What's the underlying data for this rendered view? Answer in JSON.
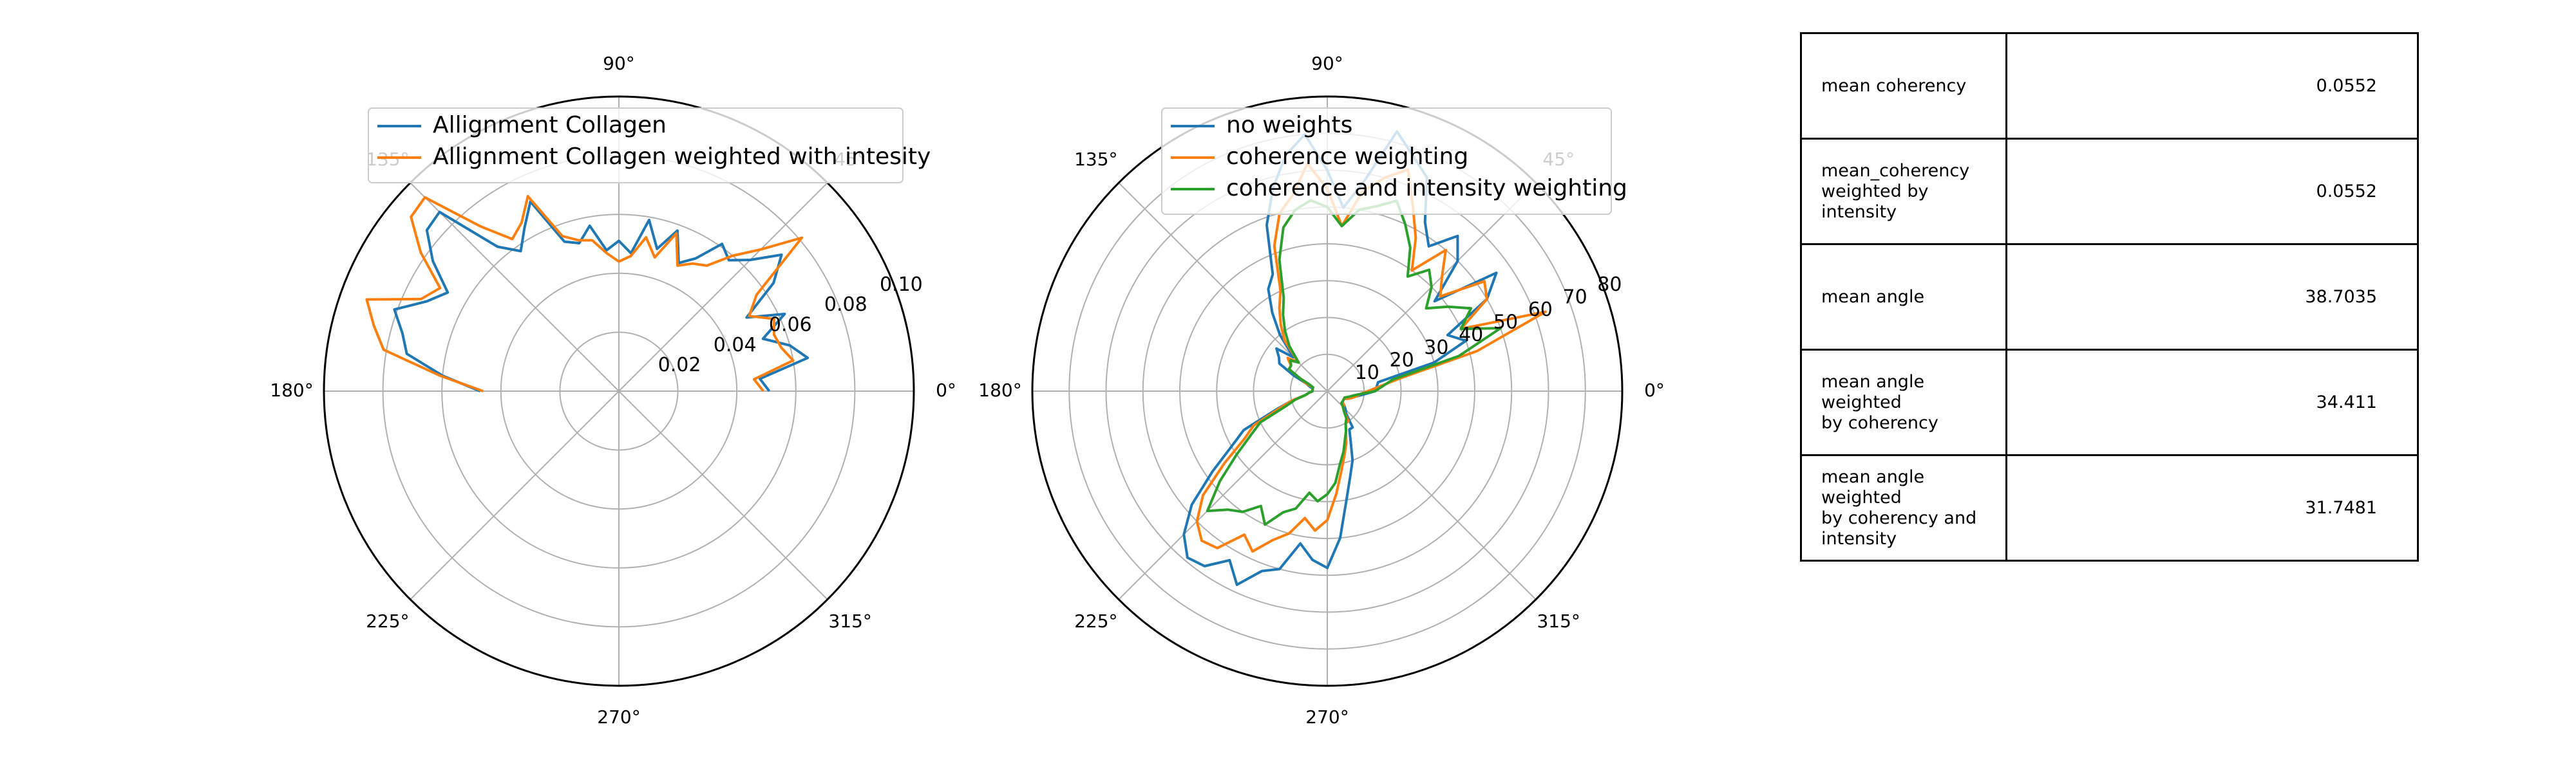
{
  "chart_data": [
    {
      "type": "polar-line",
      "angle_ticks": [
        "0°",
        "45°",
        "90°",
        "135°",
        "180°",
        "225°",
        "270°",
        "315°"
      ],
      "r_ticks": [
        "0.02",
        "0.04",
        "0.06",
        "0.08",
        "0.10"
      ],
      "r_tick_values": [
        0.02,
        0.04,
        0.06,
        0.08,
        0.1
      ],
      "rmax": 0.1,
      "legend_position": "top",
      "grid": true,
      "theta_deg": [
        0,
        5,
        10,
        15,
        20,
        25,
        30,
        35,
        40,
        45,
        50,
        55,
        60,
        65,
        70,
        75,
        80,
        85,
        90,
        95,
        100,
        105,
        110,
        115,
        120,
        125,
        130,
        135,
        140,
        145,
        150,
        155,
        160,
        165,
        170,
        175,
        180
      ],
      "series": [
        {
          "name": "Allignment Collagen",
          "color": "#1f77b4",
          "r": [
            0.051,
            0.048,
            0.065,
            0.06,
            0.052,
            0.062,
            0.05,
            0.064,
            0.072,
            0.063,
            0.058,
            0.061,
            0.052,
            0.048,
            0.058,
            0.05,
            0.059,
            0.047,
            0.051,
            0.048,
            0.057,
            0.052,
            0.054,
            0.071,
            0.064,
            0.058,
            0.064,
            0.086,
            0.085,
            0.077,
            0.067,
            0.072,
            0.081,
            0.076,
            0.073,
            0.06,
            0.047
          ]
        },
        {
          "name": "Allignment Collagen weighted with intesity",
          "color": "#ff7f0e",
          "r": [
            0.049,
            0.046,
            0.06,
            0.057,
            0.056,
            0.058,
            0.051,
            0.057,
            0.081,
            0.068,
            0.06,
            0.052,
            0.05,
            0.047,
            0.057,
            0.047,
            0.053,
            0.046,
            0.044,
            0.047,
            0.052,
            0.053,
            0.056,
            0.073,
            0.066,
            0.063,
            0.073,
            0.093,
            0.092,
            0.082,
            0.07,
            0.074,
            0.091,
            0.086,
            0.081,
            0.061,
            0.046
          ]
        }
      ]
    },
    {
      "type": "polar-line",
      "angle_ticks": [
        "0°",
        "45°",
        "90°",
        "135°",
        "180°",
        "225°",
        "270°",
        "315°"
      ],
      "r_ticks": [
        "10",
        "20",
        "30",
        "40",
        "50",
        "60",
        "70",
        "80"
      ],
      "r_tick_values": [
        10,
        20,
        30,
        40,
        50,
        60,
        70,
        80
      ],
      "rmax": 80,
      "legend_position": "top",
      "grid": true,
      "series": [
        {
          "name": "no weights",
          "color": "#1f77b4",
          "theta_deg": [
            0,
            10,
            15,
            20,
            25,
            30,
            35,
            40,
            45,
            50,
            55,
            60,
            65,
            70,
            75,
            80,
            85,
            90,
            95,
            100,
            105,
            110,
            115,
            120,
            125,
            130,
            135,
            140,
            145,
            150,
            155,
            160,
            165,
            170,
            175,
            180,
            185,
            190,
            195,
            200,
            205,
            210,
            215,
            220,
            225,
            230,
            235,
            240,
            245,
            250,
            255,
            260,
            265,
            270,
            275,
            280,
            285,
            290,
            295,
            300,
            305,
            310,
            315,
            320,
            325,
            330,
            335,
            340,
            345,
            350,
            355
          ],
          "r": [
            13,
            14,
            30,
            40,
            36,
            50,
            56,
            38,
            50,
            55,
            48,
            53,
            64,
            68,
            73,
            58,
            50,
            60,
            70,
            65,
            57,
            48,
            35,
            32,
            26,
            20,
            13,
            18,
            16,
            15,
            10,
            6,
            5,
            4,
            4,
            4,
            5,
            6,
            10,
            15,
            25,
            30,
            38,
            48,
            55,
            59,
            58,
            53,
            58,
            52,
            50,
            42,
            46,
            48,
            40,
            30,
            24,
            20,
            15,
            12,
            12,
            8,
            7,
            6,
            5,
            5,
            5,
            6,
            7,
            8,
            10
          ]
        },
        {
          "name": "coherence weighting",
          "color": "#ff7f0e",
          "theta_deg": [
            0,
            10,
            15,
            20,
            25,
            30,
            35,
            40,
            45,
            50,
            55,
            60,
            65,
            70,
            75,
            80,
            85,
            90,
            95,
            100,
            105,
            110,
            115,
            120,
            125,
            130,
            135,
            140,
            145,
            150,
            155,
            160,
            165,
            170,
            175,
            180,
            185,
            190,
            195,
            200,
            205,
            210,
            215,
            220,
            225,
            230,
            235,
            240,
            245,
            250,
            255,
            260,
            265,
            270,
            275,
            280,
            285,
            290,
            295,
            300,
            305,
            310,
            315,
            320,
            325,
            330,
            335,
            340,
            345,
            350,
            355
          ],
          "r": [
            11,
            20,
            42,
            63,
            40,
            50,
            52,
            40,
            44,
            50,
            40,
            48,
            55,
            64,
            60,
            55,
            45,
            55,
            62,
            54,
            50,
            42,
            30,
            26,
            22,
            18,
            11,
            14,
            12,
            12,
            8,
            6,
            4,
            4,
            4,
            4,
            5,
            6,
            10,
            14,
            22,
            26,
            34,
            44,
            50,
            53,
            52,
            45,
            48,
            43,
            40,
            35,
            38,
            35,
            28,
            22,
            18,
            15,
            12,
            10,
            10,
            7,
            6,
            6,
            5,
            5,
            5,
            6,
            7,
            8,
            9
          ]
        },
        {
          "name": "coherence and intensity weighting",
          "color": "#2ca02c",
          "theta_deg": [
            0,
            10,
            15,
            20,
            25,
            30,
            35,
            40,
            45,
            50,
            55,
            60,
            65,
            70,
            75,
            80,
            85,
            90,
            95,
            100,
            105,
            110,
            115,
            120,
            125,
            130,
            135,
            140,
            145,
            150,
            155,
            160,
            165,
            170,
            175,
            180,
            185,
            190,
            195,
            200,
            205,
            210,
            215,
            220,
            225,
            230,
            235,
            240,
            245,
            250,
            255,
            260,
            265,
            270,
            275,
            280,
            285,
            290,
            295,
            300,
            305,
            310,
            315,
            320,
            325,
            330,
            335,
            340,
            345,
            350,
            355
          ],
          "r": [
            13,
            18,
            37,
            50,
            40,
            45,
            40,
            35,
            40,
            43,
            38,
            45,
            50,
            55,
            52,
            50,
            45,
            50,
            52,
            50,
            46,
            38,
            28,
            24,
            20,
            16,
            11,
            13,
            12,
            12,
            8,
            5,
            4,
            4,
            4,
            4,
            5,
            6,
            9,
            12,
            20,
            24,
            30,
            38,
            46,
            42,
            40,
            36,
            40,
            35,
            33,
            28,
            30,
            28,
            25,
            20,
            17,
            14,
            12,
            10,
            9,
            7,
            6,
            5,
            5,
            5,
            5,
            5,
            6,
            7,
            9
          ]
        }
      ]
    }
  ],
  "table": {
    "rows": [
      {
        "key": "mean coherency",
        "value": "0.0552"
      },
      {
        "key": "mean_coherency\nweighted by intensity",
        "value": "0.0552"
      },
      {
        "key": "mean angle",
        "value": "38.7035"
      },
      {
        "key": "mean angle weighted\nby coherency",
        "value": "34.411"
      },
      {
        "key": "mean angle weighted\nby coherency and intensity",
        "value": "31.7481"
      }
    ]
  }
}
